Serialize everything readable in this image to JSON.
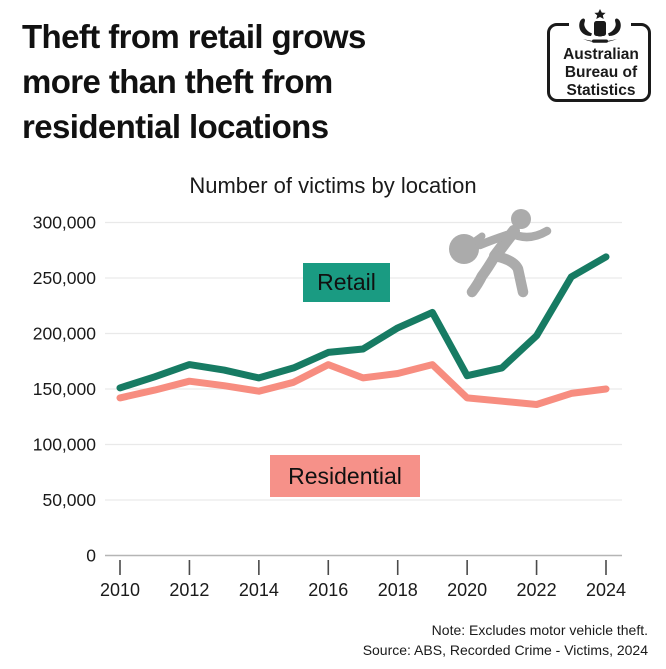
{
  "header": {
    "title": "Theft from retail grows\nmore than theft from\nresidential locations"
  },
  "logo": {
    "name": "Australian Bureau of Statistics",
    "text": "Australian\nBureau of\nStatistics"
  },
  "chart_data": {
    "type": "line",
    "title": "Number of victims by location",
    "x": [
      2010,
      2011,
      2012,
      2013,
      2014,
      2015,
      2016,
      2017,
      2018,
      2019,
      2020,
      2021,
      2022,
      2023,
      2024
    ],
    "series": [
      {
        "name": "Retail",
        "color": "#177B63",
        "label_bg": "#1A9B82",
        "values": [
          151000,
          161000,
          172000,
          167000,
          160000,
          169000,
          183000,
          186000,
          205000,
          219000,
          162000,
          169000,
          198000,
          251000,
          269000
        ]
      },
      {
        "name": "Residential",
        "color": "#F78D80",
        "label_bg": "#F69189",
        "values": [
          142000,
          149000,
          157000,
          153000,
          148000,
          156000,
          172000,
          160000,
          164000,
          172000,
          142000,
          139000,
          136000,
          146000,
          150000
        ]
      }
    ],
    "ylim": [
      0,
      300000
    ],
    "ytick_step": 50000,
    "ytick_labels": [
      "0",
      "50,000",
      "100,000",
      "150,000",
      "200,000",
      "250,000",
      "300,000"
    ],
    "xtick_labels": [
      "2010",
      "2012",
      "2014",
      "2016",
      "2018",
      "2020",
      "2022",
      "2024"
    ],
    "grid": "horizontal-only",
    "legend": "inline-colored-boxes"
  },
  "icons": {
    "runner": "thief-running-with-bag-icon",
    "crest": "australian-coat-of-arms-icon"
  },
  "footer": {
    "note": "Note: Excludes motor vehicle theft.",
    "source": "Source: ABS, Recorded Crime - Victims, 2024"
  },
  "colors": {
    "background": "#ffffff",
    "retail_line": "#177B63",
    "retail_label_bg": "#1A9B82",
    "residential_line": "#F78D80",
    "residential_label_bg": "#F69189",
    "runner_gray": "#ABABAB",
    "gridline": "#E9E9E9",
    "axis_line": "#B5B5B5",
    "tick": "#4a4a4a",
    "text": "#111111"
  }
}
